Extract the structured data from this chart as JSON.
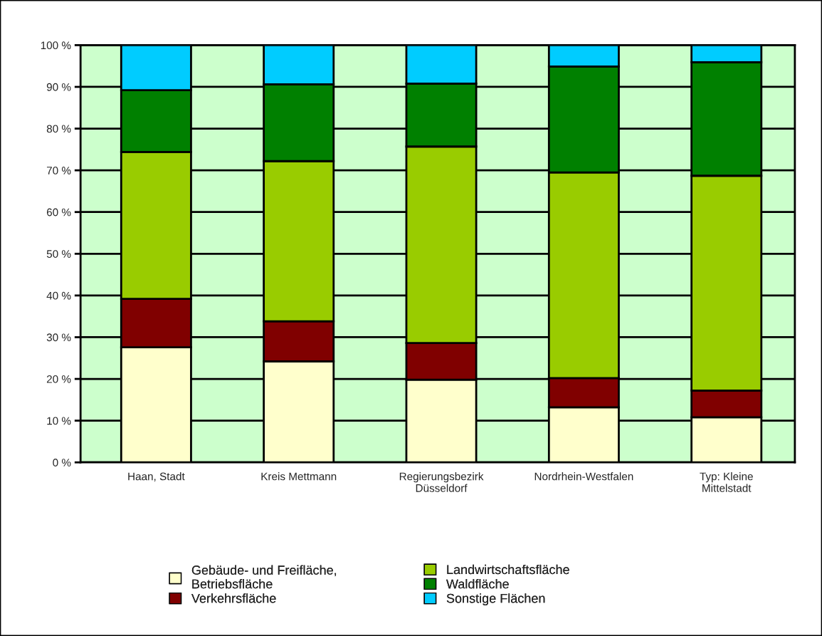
{
  "chart_data": {
    "type": "bar",
    "stacked": true,
    "categories": [
      "Haan, Stadt",
      "Kreis Mettmann",
      "Regierungsbezirk\nDüsseldorf",
      "Nordrhein-Westfalen",
      "Typ: Kleine\nMittelstadt"
    ],
    "series": [
      {
        "name": "Gebäude- und Freifläche,\nBetriebsfläche",
        "color": "#ffffcc",
        "values": [
          27.6,
          24.2,
          19.8,
          13.2,
          10.8
        ]
      },
      {
        "name": "Verkehrsfläche",
        "color": "#800000",
        "values": [
          11.6,
          9.6,
          8.8,
          7.0,
          6.4
        ]
      },
      {
        "name": "Landwirtschaftsfläche",
        "color": "#99cc00",
        "values": [
          35.2,
          38.4,
          47.1,
          49.3,
          51.5
        ]
      },
      {
        "name": "Waldfläche",
        "color": "#008000",
        "values": [
          14.8,
          18.4,
          15.1,
          25.4,
          27.2
        ]
      },
      {
        "name": "Sonstige Flächen",
        "color": "#00ccff",
        "values": [
          10.8,
          9.4,
          9.2,
          5.1,
          4.1
        ]
      }
    ],
    "ylim": [
      0,
      100
    ],
    "yticks": [
      {
        "value": 0,
        "label": "0 %"
      },
      {
        "value": 10,
        "label": "10 %"
      },
      {
        "value": 20,
        "label": "20 %"
      },
      {
        "value": 30,
        "label": "30 %"
      },
      {
        "value": 40,
        "label": "40 %"
      },
      {
        "value": 50,
        "label": "50 %"
      },
      {
        "value": 60,
        "label": "60 %"
      },
      {
        "value": 70,
        "label": "70 %"
      },
      {
        "value": 80,
        "label": "80 %"
      },
      {
        "value": 90,
        "label": "90 %"
      },
      {
        "value": 100,
        "label": "100 %"
      }
    ],
    "grid": "y",
    "legend": "bottom"
  }
}
